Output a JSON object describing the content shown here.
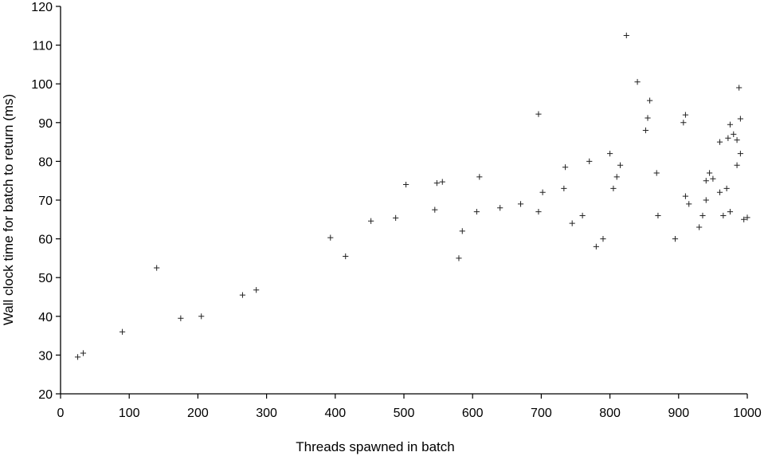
{
  "chart_data": {
    "type": "scatter",
    "title": "",
    "xlabel": "Threads spawned in batch",
    "ylabel": "Wall clock time for batch to return (ms)",
    "xlim": [
      0,
      1000
    ],
    "ylim": [
      20,
      120
    ],
    "xticks": [
      "0",
      "100",
      "200",
      "300",
      "400",
      "500",
      "600",
      "700",
      "800",
      "900",
      "1000"
    ],
    "yticks": [
      "20",
      "30",
      "40",
      "50",
      "60",
      "70",
      "80",
      "90",
      "100",
      "110",
      "120"
    ],
    "marker": "+",
    "marker_color": "#222222",
    "grid": false,
    "legend": "none",
    "series": [
      {
        "points": [
          [
            140,
            52.5
          ],
          [
            393,
            60.3
          ],
          [
            503,
            74
          ],
          [
            548,
            74.4
          ],
          [
            556,
            74.7
          ],
          [
            610,
            76
          ],
          [
            696,
            92.2
          ],
          [
            824,
            112.5
          ],
          [
            840,
            100.5
          ],
          [
            858,
            95.7
          ],
          [
            855,
            91.2
          ],
          [
            852,
            88
          ],
          [
            868,
            77
          ],
          [
            907,
            90
          ],
          [
            910,
            92
          ],
          [
            960,
            85
          ],
          [
            972,
            86
          ],
          [
            980,
            87
          ],
          [
            985,
            85.5
          ],
          [
            988,
            99
          ],
          [
            990,
            91
          ],
          [
            975,
            89.5
          ],
          [
            770,
            80
          ],
          [
            800,
            82
          ],
          [
            815,
            79
          ],
          [
            805,
            73
          ],
          [
            810,
            76
          ],
          [
            745,
            64
          ],
          [
            760,
            66
          ],
          [
            780,
            58
          ],
          [
            790,
            60
          ],
          [
            735,
            78.5
          ],
          [
            733,
            73
          ],
          [
            702,
            72
          ],
          [
            696,
            67
          ],
          [
            670,
            69
          ],
          [
            640,
            68
          ],
          [
            606,
            67
          ],
          [
            585,
            62
          ],
          [
            580,
            55
          ],
          [
            545,
            67.5
          ],
          [
            488,
            65.4
          ],
          [
            452,
            64.6
          ],
          [
            415,
            55.5
          ],
          [
            265,
            45.5
          ],
          [
            285,
            46.8
          ],
          [
            90,
            36
          ],
          [
            175,
            39.5
          ],
          [
            205,
            40
          ],
          [
            33,
            30.5
          ],
          [
            25,
            29.5
          ],
          [
            960,
            72
          ],
          [
            970,
            73
          ],
          [
            940,
            75
          ],
          [
            945,
            77
          ],
          [
            950,
            75.5
          ],
          [
            915,
            69
          ],
          [
            995,
            65
          ],
          [
            1000,
            65.5
          ],
          [
            870,
            66
          ],
          [
            895,
            60
          ],
          [
            930,
            63
          ],
          [
            935,
            66
          ],
          [
            940,
            70
          ],
          [
            965,
            66
          ],
          [
            975,
            67
          ],
          [
            985,
            79
          ],
          [
            990,
            82
          ],
          [
            910,
            71
          ]
        ]
      }
    ]
  }
}
